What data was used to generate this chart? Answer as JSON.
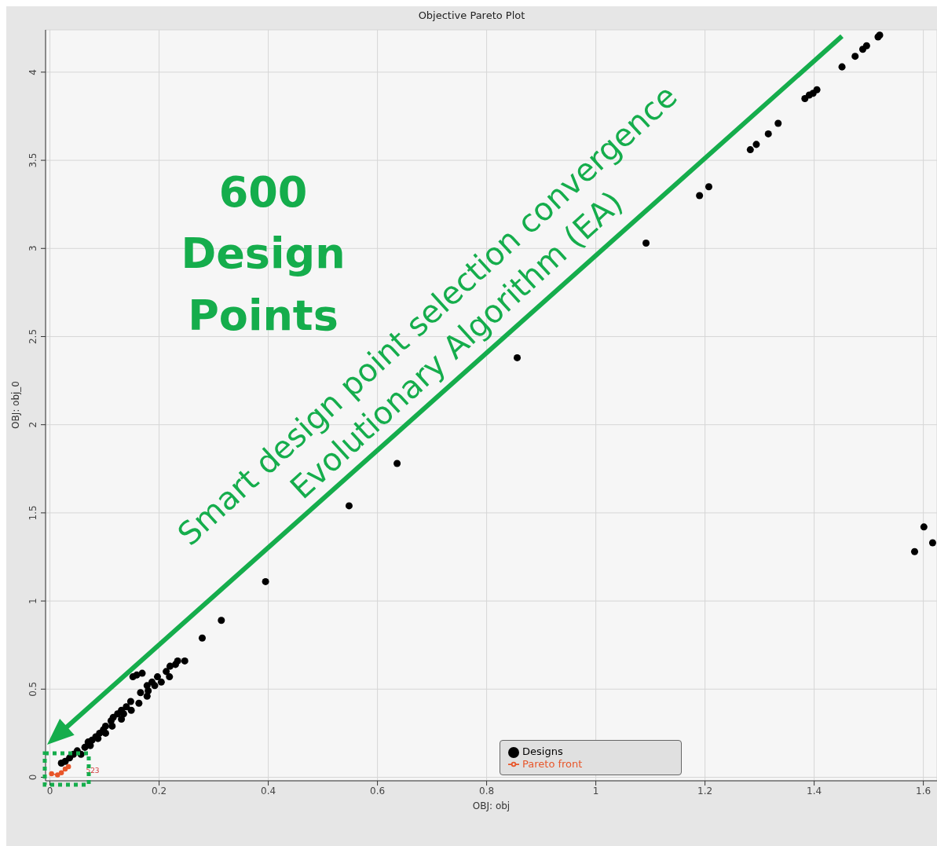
{
  "chart_data": {
    "type": "scatter",
    "title": "Objective Pareto Plot",
    "xlabel": "OBJ: obj",
    "ylabel": "OBJ: obj_0",
    "xlim": [
      -0.008,
      1.625
    ],
    "ylim": [
      -0.02,
      4.24
    ],
    "xticks": [
      0,
      0.2,
      0.4,
      0.6,
      0.8,
      1,
      1.2,
      1.4,
      1.6
    ],
    "yticks": [
      0,
      0.5,
      1,
      1.5,
      2,
      2.5,
      3,
      3.5,
      4
    ],
    "grid": true,
    "legend": "bottom",
    "marker": "circle",
    "series": [
      {
        "name": "Designs",
        "color": "#000000",
        "x": [
          1.451,
          1.475,
          1.489,
          1.496,
          1.517,
          1.52,
          1.383,
          1.391,
          1.398,
          1.405,
          1.334,
          1.316,
          1.294,
          1.283,
          1.207,
          1.19,
          1.092,
          0.856,
          0.636,
          0.548,
          0.395,
          0.314,
          0.279,
          1.584,
          1.601,
          1.617,
          0.247,
          0.234,
          0.23,
          0.22,
          0.213,
          0.219,
          0.197,
          0.204,
          0.187,
          0.192,
          0.178,
          0.18,
          0.178,
          0.166,
          0.163,
          0.169,
          0.159,
          0.152,
          0.148,
          0.149,
          0.14,
          0.135,
          0.131,
          0.124,
          0.131,
          0.116,
          0.112,
          0.114,
          0.102,
          0.098,
          0.102,
          0.091,
          0.084,
          0.088,
          0.077,
          0.07,
          0.074,
          0.064,
          0.057,
          0.05,
          0.043,
          0.036,
          0.028,
          0.021
        ],
        "values": [
          4.03,
          4.09,
          4.13,
          4.15,
          4.2,
          4.21,
          3.85,
          3.87,
          3.88,
          3.9,
          3.71,
          3.65,
          3.59,
          3.56,
          3.35,
          3.3,
          3.03,
          2.38,
          1.78,
          1.54,
          1.11,
          0.89,
          0.79,
          1.28,
          1.42,
          1.33,
          0.66,
          0.66,
          0.64,
          0.63,
          0.6,
          0.57,
          0.57,
          0.54,
          0.54,
          0.52,
          0.52,
          0.49,
          0.46,
          0.48,
          0.42,
          0.59,
          0.58,
          0.57,
          0.43,
          0.38,
          0.4,
          0.36,
          0.38,
          0.36,
          0.33,
          0.34,
          0.32,
          0.29,
          0.29,
          0.27,
          0.25,
          0.25,
          0.23,
          0.22,
          0.21,
          0.2,
          0.18,
          0.17,
          0.13,
          0.15,
          0.13,
          0.11,
          0.09,
          0.08
        ]
      },
      {
        "name": "Pareto front",
        "type": "line",
        "color": "#e8562a",
        "x": [
          0.003,
          0.014,
          0.021,
          0.028,
          0.034
        ],
        "values": [
          0.02,
          0.013,
          0.026,
          0.047,
          0.06
        ]
      }
    ],
    "annotations": [
      "600 Design Points",
      "Smart design point selection convergence",
      "Evolutionary Algorithm (EA)",
      "523"
    ]
  }
}
